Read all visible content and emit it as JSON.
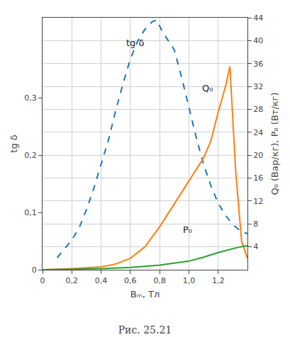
{
  "chart_data": {
    "type": "line",
    "title": "Рис. 25.21",
    "xlabel": "Bₘ, Тл",
    "ylabel": "tg δ",
    "y2label": "Q₀ (Вар/кг), P₀ (Вт/кг)",
    "xlim": [
      0,
      1.4
    ],
    "ylim": [
      0,
      0.44
    ],
    "y2lim": [
      0,
      44
    ],
    "xticks": [
      0,
      {
        "value": 0.2,
        "label": "0,2"
      },
      {
        "value": 0.4,
        "label": "0,4"
      },
      {
        "value": 0.6,
        "label": "0,6"
      },
      {
        "value": 0.8,
        "label": "0,8"
      },
      {
        "value": 1.0,
        "label": "1,0"
      },
      {
        "value": 1.2,
        "label": "1,2"
      }
    ],
    "yticks": [
      0,
      {
        "value": 0.1,
        "label": "0,1"
      },
      {
        "value": 0.2,
        "label": "0,2"
      },
      {
        "value": 0.3,
        "label": "0,3"
      }
    ],
    "y2ticks": [
      4,
      8,
      12,
      16,
      20,
      24,
      28,
      32,
      36,
      40,
      44
    ],
    "grid": true,
    "series": [
      {
        "x": [
          0.1,
          0.15,
          0.2,
          0.25,
          0.3,
          0.35,
          0.4,
          0.45,
          0.5,
          0.55,
          0.6,
          0.65,
          0.7,
          0.75,
          0.78,
          0.82,
          0.9,
          0.95,
          1.0,
          1.05,
          1.1,
          1.15,
          1.2,
          1.25,
          1.3,
          1.35,
          1.4
        ],
        "values": [
          0.021,
          0.036,
          0.052,
          0.073,
          0.105,
          0.142,
          0.184,
          0.226,
          0.278,
          0.325,
          0.368,
          0.399,
          0.42,
          0.433,
          0.436,
          0.415,
          0.384,
          0.336,
          0.284,
          0.231,
          0.184,
          0.147,
          0.116,
          0.095,
          0.079,
          0.068,
          0.063
        ],
        "axis": "y",
        "line_style": "dashed"
      },
      {
        "x": [
          0.0,
          0.2,
          0.4,
          0.5,
          0.6,
          0.7,
          0.8,
          0.9,
          1.0,
          1.1,
          1.15,
          1.2,
          1.25,
          1.28,
          1.32,
          1.36,
          1.4
        ],
        "values": [
          0.0,
          0.2,
          0.5,
          1.0,
          2.0,
          4.0,
          7.5,
          11.5,
          15.5,
          19.5,
          22.5,
          27.5,
          32.0,
          35.5,
          17.0,
          5.0,
          2.0
        ],
        "axis": "y2",
        "line_style": "solid"
      },
      {
        "x": [
          0.0,
          0.2,
          0.4,
          0.6,
          0.8,
          1.0,
          1.1,
          1.2,
          1.3,
          1.35,
          1.4
        ],
        "values": [
          0.0,
          0.1,
          0.2,
          0.4,
          0.8,
          1.5,
          2.2,
          3.0,
          3.7,
          4.0,
          4.2
        ],
        "axis": "y2",
        "line_style": "solid"
      }
    ],
    "annotations": [
      {
        "text": "tg δ",
        "x": 0.56,
        "y": 0.385
      },
      {
        "text": "Q₀",
        "x": 1.08,
        "y": 0.305
      },
      {
        "text": "P₀",
        "x": 0.95,
        "y": 0.058
      }
    ]
  }
}
